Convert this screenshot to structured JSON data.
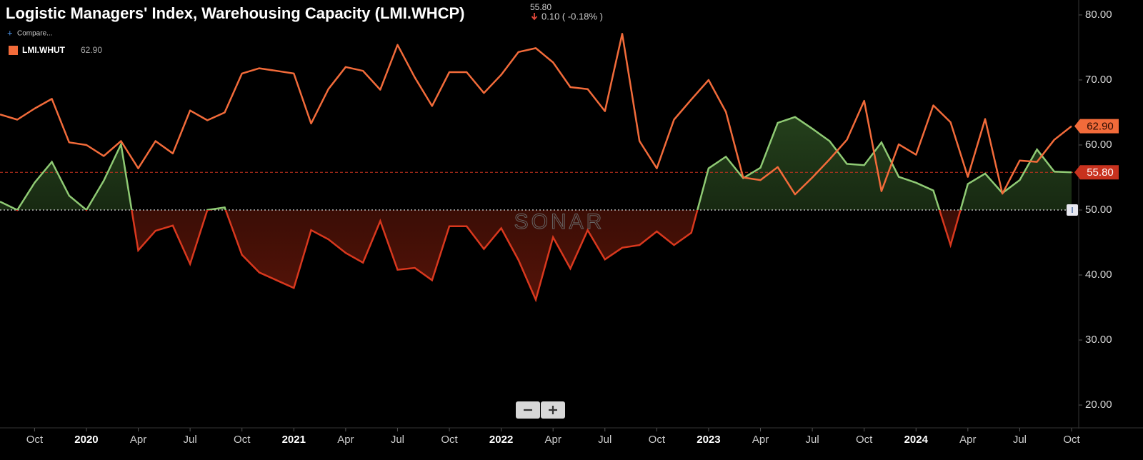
{
  "header": {
    "title": "Logistic Managers' Index, Warehousing Capacity (LMI.WHCP)",
    "value": "55.80",
    "change": "0.10 ( -0.18% )",
    "compare": "Compare...",
    "watermark": "SONAR"
  },
  "chart_data": {
    "type": "line",
    "x": [
      "2019-08",
      "2019-09",
      "2019-10",
      "2019-11",
      "2019-12",
      "2020-01",
      "2020-02",
      "2020-03",
      "2020-04",
      "2020-05",
      "2020-06",
      "2020-07",
      "2020-08",
      "2020-09",
      "2020-10",
      "2020-11",
      "2020-12",
      "2021-01",
      "2021-02",
      "2021-03",
      "2021-04",
      "2021-05",
      "2021-06",
      "2021-07",
      "2021-08",
      "2021-09",
      "2021-10",
      "2021-11",
      "2021-12",
      "2022-01",
      "2022-02",
      "2022-03",
      "2022-04",
      "2022-05",
      "2022-06",
      "2022-07",
      "2022-08",
      "2022-09",
      "2022-10",
      "2022-11",
      "2022-12",
      "2023-01",
      "2023-02",
      "2023-03",
      "2023-04",
      "2023-05",
      "2023-06",
      "2023-07",
      "2023-08",
      "2023-09",
      "2023-10",
      "2023-11",
      "2023-12",
      "2024-01",
      "2024-02",
      "2024-03",
      "2024-04",
      "2024-05",
      "2024-06",
      "2024-07",
      "2024-08",
      "2024-09",
      "2024-10"
    ],
    "series": [
      {
        "name": "LMI.WHCP",
        "color": "#8fca74",
        "negative_color": "#d9381e",
        "baseline": 50,
        "values": [
          51.3,
          50,
          54.2,
          57.4,
          52.2,
          50,
          54.5,
          60.1,
          43.8,
          46.8,
          47.6,
          41.7,
          50,
          50.4,
          43.1,
          40.4,
          39.2,
          38.0,
          46.9,
          45.5,
          43.4,
          41.9,
          48.3,
          40.8,
          41.1,
          39.2,
          47.5,
          47.5,
          44.0,
          47.2,
          42.3,
          36.2,
          45.8,
          41.0,
          46.9,
          42.4,
          44.2,
          44.6,
          46.7,
          44.6,
          46.5,
          56.4,
          58.2,
          54.9,
          56.5,
          63.4,
          64.3,
          62.5,
          60.6,
          57.1,
          56.9,
          60.4,
          55.1,
          54.2,
          53.0,
          44.6,
          54.0,
          55.6,
          52.6,
          54.6,
          59.3,
          55.9,
          55.8
        ]
      },
      {
        "name": "LMI.WHUT",
        "color": "#f26b3a",
        "legend_value": "62.90",
        "values": [
          64.7,
          63.9,
          65.6,
          67.1,
          60.4,
          60.0,
          58.3,
          60.6,
          56.4,
          60.6,
          58.7,
          65.3,
          63.8,
          65.0,
          71.0,
          71.8,
          71.4,
          71.0,
          63.3,
          68.6,
          72.0,
          71.4,
          68.5,
          75.4,
          70.4,
          66.0,
          71.2,
          71.2,
          68.0,
          70.8,
          74.3,
          74.9,
          72.7,
          68.9,
          68.6,
          65.2,
          77.1,
          60.6,
          56.4,
          63.9,
          67.0,
          70.0,
          65.1,
          55.0,
          54.6,
          56.6,
          52.4,
          55.0,
          57.8,
          60.8,
          66.8,
          52.9,
          60.1,
          58.5,
          66.1,
          63.5,
          55.1,
          64.0,
          52.5,
          57.6,
          57.4,
          60.8,
          62.9
        ]
      }
    ],
    "reference_line": 55.8,
    "ylim": [
      16.6,
      82.3
    ],
    "yticks": [
      {
        "value": 20,
        "label": "20.00"
      },
      {
        "value": 30,
        "label": "30.00"
      },
      {
        "value": 40,
        "label": "40.00"
      },
      {
        "value": 50,
        "label": "50.00"
      },
      {
        "value": 60,
        "label": "60.00"
      },
      {
        "value": 70,
        "label": "70.00"
      },
      {
        "value": 80,
        "label": "80.00"
      }
    ],
    "xticks": [
      {
        "value": "2019-10",
        "label": "Oct"
      },
      {
        "value": "2020-01",
        "label": "2020"
      },
      {
        "value": "2020-04",
        "label": "Apr"
      },
      {
        "value": "2020-07",
        "label": "Jul"
      },
      {
        "value": "2020-10",
        "label": "Oct"
      },
      {
        "value": "2021-01",
        "label": "2021"
      },
      {
        "value": "2021-04",
        "label": "Apr"
      },
      {
        "value": "2021-07",
        "label": "Jul"
      },
      {
        "value": "2021-10",
        "label": "Oct"
      },
      {
        "value": "2022-01",
        "label": "2022"
      },
      {
        "value": "2022-04",
        "label": "Apr"
      },
      {
        "value": "2022-07",
        "label": "Jul"
      },
      {
        "value": "2022-10",
        "label": "Oct"
      },
      {
        "value": "2023-01",
        "label": "2023"
      },
      {
        "value": "2023-04",
        "label": "Apr"
      },
      {
        "value": "2023-07",
        "label": "Jul"
      },
      {
        "value": "2023-10",
        "label": "Oct"
      },
      {
        "value": "2024-01",
        "label": "2024"
      },
      {
        "value": "2024-04",
        "label": "Apr"
      },
      {
        "value": "2024-07",
        "label": "Jul"
      },
      {
        "value": "2024-10",
        "label": "Oct"
      }
    ]
  }
}
